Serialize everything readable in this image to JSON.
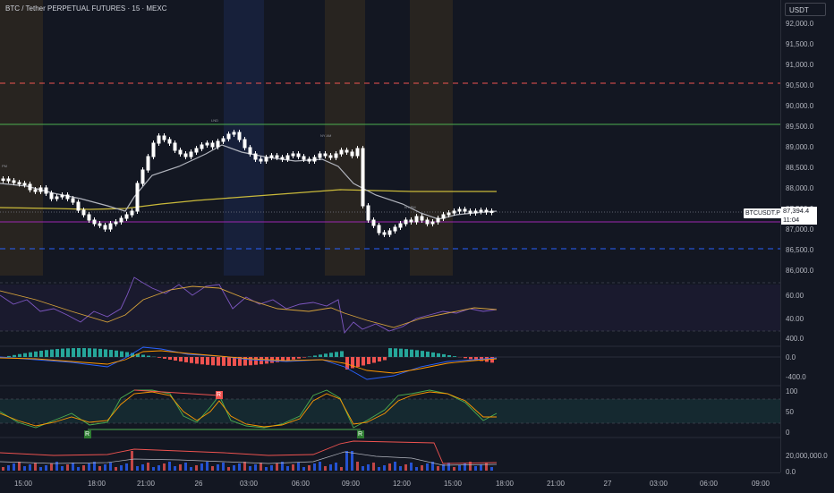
{
  "header": {
    "title": "BTC / Tether PERPETUAL FUTURES · 15 · MEXC"
  },
  "axis": {
    "currency_label": "USDT",
    "price_labels": [
      "92,000.0",
      "91,500.0",
      "91,000.0",
      "90,500.0",
      "90,000.0",
      "89,500.0",
      "89,000.0",
      "88,500.0",
      "88,000.0",
      "87,500.0",
      "87,000.0",
      "86,500.0",
      "86,000.0"
    ],
    "symbol_badge": "BTCUSDT.P",
    "current_price": "87,394.4",
    "countdown": "11:04",
    "rsi_labels": [
      "60.00",
      "40.00"
    ],
    "macd_labels": [
      "400.0",
      "0.0",
      "-400.0"
    ],
    "stoch_labels": [
      "100",
      "50",
      "0"
    ],
    "volume_labels": [
      "20,000,000.0",
      "0.0"
    ]
  },
  "time_axis": {
    "labels": [
      "15:00",
      "18:00",
      "21:00",
      "26",
      "03:00",
      "06:00",
      "09:00",
      "12:00",
      "15:00",
      "18:00",
      "21:00",
      "27",
      "03:00",
      "06:00",
      "09:00"
    ]
  },
  "chart_notes": [
    "PM",
    "LND",
    "NY AM",
    "NY PM"
  ],
  "signals": [
    "R",
    "R",
    "R"
  ],
  "colors": {
    "background": "#131722",
    "bull": "#ffffff",
    "bear": "#ffffff",
    "resistance": "#4caf50",
    "support_red": "#ef5350",
    "support_blue": "#2962ff",
    "ma_gray": "#b2b5be",
    "ma_yellow": "#d4c53a",
    "purple_line": "#9c27b0"
  }
}
